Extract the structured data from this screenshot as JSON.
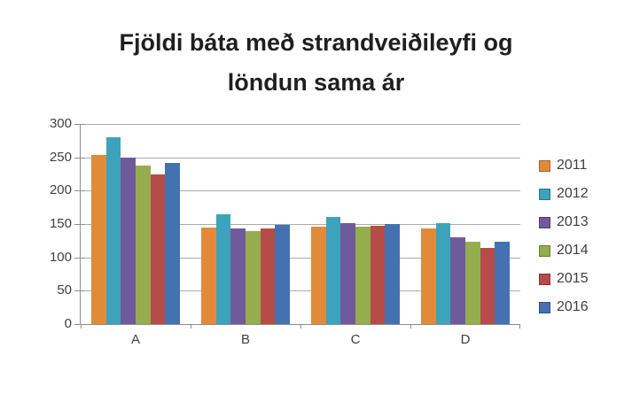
{
  "title_lines": [
    "Fjöldi báta með strandveiðileyfi og",
    "löndun sama ár"
  ],
  "chart_data": {
    "type": "bar",
    "title": "Fjöldi báta með strandveiðileyfi og löndun sama ár",
    "categories": [
      "A",
      "B",
      "C",
      "D"
    ],
    "series": [
      {
        "name": "2011",
        "color": "#E18B3A",
        "values": [
          253,
          145,
          146,
          143
        ]
      },
      {
        "name": "2012",
        "color": "#3DA2BC",
        "values": [
          280,
          164,
          160,
          151
        ]
      },
      {
        "name": "2013",
        "color": "#6F5B9C",
        "values": [
          250,
          144,
          152,
          130
        ]
      },
      {
        "name": "2014",
        "color": "#95AD4E",
        "values": [
          238,
          140,
          146,
          124
        ]
      },
      {
        "name": "2015",
        "color": "#B54C48",
        "values": [
          225,
          143,
          148,
          114
        ]
      },
      {
        "name": "2016",
        "color": "#4472B0",
        "values": [
          242,
          149,
          150,
          123
        ]
      }
    ],
    "xlabel": "",
    "ylabel": "",
    "ylim": [
      0,
      300
    ],
    "ytick_step": 50,
    "grid": true,
    "legend_position": "right",
    "gap_width_ratio": 1.5
  },
  "colors": {
    "background": "#FFFFFF",
    "gridline": "#ABABAB",
    "axis": "#8E8E8E",
    "axis_text": "#3F3F3F",
    "title_text": "#1F1F1F"
  }
}
